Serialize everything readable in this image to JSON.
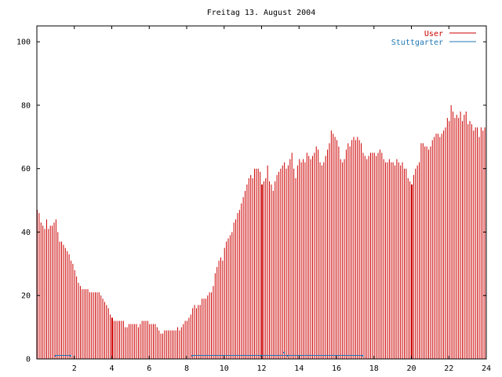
{
  "chart_data": {
    "type": "bar",
    "title": "Freitag 13. August 2004",
    "xlabel": "",
    "ylabel": "",
    "xlim": [
      0,
      24
    ],
    "ylim": [
      0,
      105
    ],
    "xticks": [
      "2",
      "4",
      "6",
      "8",
      "10",
      "12",
      "14",
      "16",
      "18",
      "20",
      "22",
      "24"
    ],
    "yticks": [
      "0",
      "20",
      "40",
      "60",
      "80",
      "100"
    ],
    "grid": false,
    "legend_position": "top-right",
    "colors": {
      "User": "#cc0000",
      "Stuttgarter": "#1f77b4"
    },
    "series": [
      {
        "name": "User",
        "x_hours": [
          0.0,
          0.1,
          0.2,
          0.3,
          0.4,
          0.5,
          0.6,
          0.7,
          0.8,
          0.9,
          1.0,
          1.1,
          1.2,
          1.3,
          1.4,
          1.5,
          1.6,
          1.7,
          1.8,
          1.9,
          2.0,
          2.1,
          2.2,
          2.3,
          2.4,
          2.5,
          2.6,
          2.7,
          2.8,
          2.9,
          3.0,
          3.1,
          3.2,
          3.3,
          3.4,
          3.5,
          3.6,
          3.7,
          3.8,
          3.9,
          4.0,
          4.1,
          4.2,
          4.3,
          4.4,
          4.5,
          4.6,
          4.7,
          4.8,
          4.9,
          5.0,
          5.1,
          5.2,
          5.3,
          5.4,
          5.5,
          5.6,
          5.7,
          5.8,
          5.9,
          6.0,
          6.1,
          6.2,
          6.3,
          6.4,
          6.5,
          6.6,
          6.7,
          6.8,
          6.9,
          7.0,
          7.1,
          7.2,
          7.3,
          7.4,
          7.5,
          7.6,
          7.7,
          7.8,
          7.9,
          8.0,
          8.1,
          8.2,
          8.3,
          8.4,
          8.5,
          8.6,
          8.7,
          8.8,
          8.9,
          9.0,
          9.1,
          9.2,
          9.3,
          9.4,
          9.5,
          9.6,
          9.7,
          9.8,
          9.9,
          10.0,
          10.1,
          10.2,
          10.3,
          10.4,
          10.5,
          10.6,
          10.7,
          10.8,
          10.9,
          11.0,
          11.1,
          11.2,
          11.3,
          11.4,
          11.5,
          11.6,
          11.7,
          11.8,
          11.9,
          12.0,
          12.1,
          12.2,
          12.3,
          12.4,
          12.5,
          12.6,
          12.7,
          12.8,
          12.9,
          13.0,
          13.1,
          13.2,
          13.3,
          13.4,
          13.5,
          13.6,
          13.7,
          13.8,
          13.9,
          14.0,
          14.1,
          14.2,
          14.3,
          14.4,
          14.5,
          14.6,
          14.7,
          14.8,
          14.9,
          15.0,
          15.1,
          15.2,
          15.3,
          15.4,
          15.5,
          15.6,
          15.7,
          15.8,
          15.9,
          16.0,
          16.1,
          16.2,
          16.3,
          16.4,
          16.5,
          16.6,
          16.7,
          16.8,
          16.9,
          17.0,
          17.1,
          17.2,
          17.3,
          17.4,
          17.5,
          17.6,
          17.7,
          17.8,
          17.9,
          18.0,
          18.1,
          18.2,
          18.3,
          18.4,
          18.5,
          18.6,
          18.7,
          18.8,
          18.9,
          19.0,
          19.1,
          19.2,
          19.3,
          19.4,
          19.5,
          19.6,
          19.7,
          19.8,
          19.9,
          20.0,
          20.1,
          20.2,
          20.3,
          20.4,
          20.5,
          20.6,
          20.7,
          20.8,
          20.9,
          21.0,
          21.1,
          21.2,
          21.3,
          21.4,
          21.5,
          21.6,
          21.7,
          21.8,
          21.9,
          22.0,
          22.1,
          22.2,
          22.3,
          22.4,
          22.5,
          22.6,
          22.7,
          22.8,
          22.9,
          23.0,
          23.1,
          23.2,
          23.3,
          23.4,
          23.5,
          23.6,
          23.7,
          23.8,
          23.9
        ],
        "values": [
          47,
          46,
          43,
          42,
          41,
          44,
          41,
          42,
          42,
          43,
          44,
          40,
          37,
          37,
          36,
          35,
          34,
          33,
          31,
          30,
          28,
          26,
          24,
          23,
          22,
          22,
          22,
          22,
          21,
          21,
          21,
          21,
          21,
          21,
          20,
          19,
          18,
          17,
          16,
          14,
          13,
          12,
          12,
          12,
          12,
          12,
          12,
          10,
          10,
          11,
          11,
          11,
          11,
          11,
          10,
          11,
          12,
          12,
          12,
          12,
          11,
          11,
          11,
          11,
          10,
          9,
          8,
          8,
          9,
          9,
          9,
          9,
          9,
          9,
          9,
          10,
          9,
          10,
          11,
          12,
          12,
          13,
          14,
          16,
          17,
          16,
          17,
          17,
          19,
          19,
          19,
          20,
          21,
          21,
          23,
          27,
          29,
          31,
          32,
          31,
          35,
          37,
          38,
          39,
          40,
          43,
          44,
          46,
          47,
          49,
          51,
          53,
          55,
          57,
          58,
          57,
          60,
          60,
          60,
          59,
          55,
          56,
          57,
          61,
          56,
          55,
          53,
          56,
          58,
          59,
          60,
          61,
          62,
          60,
          61,
          63,
          65,
          60,
          57,
          61,
          63,
          62,
          63,
          62,
          65,
          64,
          63,
          64,
          65,
          67,
          66,
          62,
          61,
          62,
          64,
          66,
          68,
          72,
          71,
          70,
          69,
          67,
          63,
          62,
          63,
          66,
          68,
          67,
          69,
          70,
          69,
          70,
          69,
          68,
          65,
          64,
          63,
          64,
          65,
          65,
          65,
          64,
          65,
          66,
          65,
          63,
          62,
          62,
          63,
          62,
          62,
          61,
          63,
          62,
          61,
          62,
          60,
          60,
          57,
          56,
          55,
          58,
          60,
          61,
          62,
          68,
          68,
          67,
          67,
          66,
          67,
          69,
          70,
          71,
          71,
          70,
          71,
          72,
          73,
          76,
          75,
          80,
          78,
          76,
          77,
          76,
          78,
          75,
          77,
          78,
          74,
          75,
          74,
          72,
          73,
          73,
          70,
          73,
          72,
          73
        ]
      },
      {
        "name": "Stuttgarter",
        "x_hours": [
          1.0,
          1.8,
          8.3,
          12.0,
          13.2,
          13.4,
          17.4
        ],
        "values": [
          1,
          1,
          1,
          1,
          2,
          1,
          1
        ],
        "segments": [
          [
            1.0,
            1.8
          ],
          [
            8.3,
            17.4
          ]
        ]
      }
    ],
    "highlight_bars": [
      4.0,
      12.0,
      20.0
    ]
  }
}
